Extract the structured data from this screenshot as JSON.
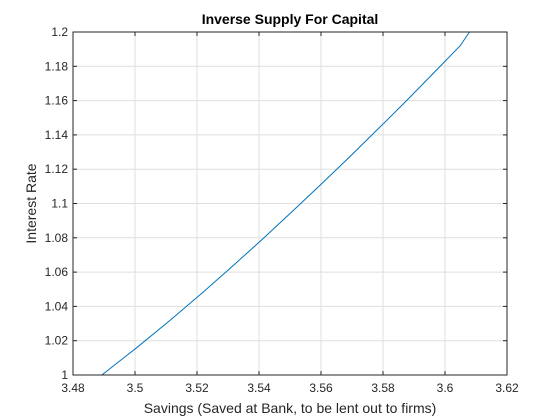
{
  "chart_data": {
    "type": "line",
    "title": "Inverse Supply For Capital",
    "xlabel": "Savings (Saved at Bank, to be lent out to firms)",
    "ylabel": "Interest Rate",
    "xlim": [
      3.48,
      3.62
    ],
    "ylim": [
      1.0,
      1.2
    ],
    "xticks": [
      3.48,
      3.5,
      3.52,
      3.54,
      3.56,
      3.58,
      3.6,
      3.62
    ],
    "xtick_labels": [
      "3.48",
      "3.5",
      "3.52",
      "3.54",
      "3.56",
      "3.58",
      "3.6",
      "3.62"
    ],
    "yticks": [
      1.0,
      1.02,
      1.04,
      1.06,
      1.08,
      1.1,
      1.12,
      1.14,
      1.16,
      1.18,
      1.2
    ],
    "ytick_labels": [
      "1",
      "1.02",
      "1.04",
      "1.06",
      "1.08",
      "1.1",
      "1.12",
      "1.14",
      "1.16",
      "1.18",
      "1.2"
    ],
    "grid": true,
    "box": true,
    "colors": {
      "line": "#0072BD",
      "grid": "#DFDFDF",
      "axis": "#262626"
    },
    "series": [
      {
        "x": [
          3.4893,
          3.5006,
          3.5114,
          3.5218,
          3.5318,
          3.5416,
          3.5511,
          3.5605,
          3.5697,
          3.5787,
          3.5876,
          3.5963,
          3.6049,
          3.6079
        ],
        "y": [
          1.0,
          1.016,
          1.032,
          1.048,
          1.064,
          1.08,
          1.096,
          1.112,
          1.128,
          1.144,
          1.16,
          1.176,
          1.192,
          1.2
        ]
      }
    ]
  }
}
